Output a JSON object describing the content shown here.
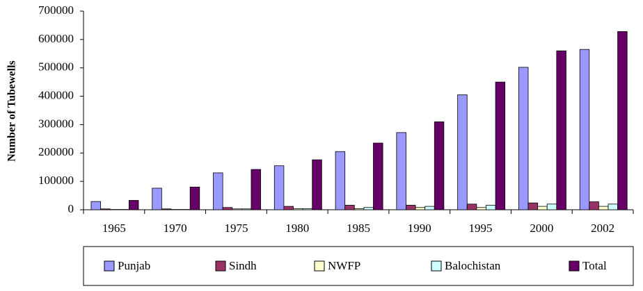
{
  "chart_data": {
    "type": "bar",
    "y_label": "Number of Tubewells",
    "categories": [
      "1965",
      "1970",
      "1975",
      "1980",
      "1985",
      "1990",
      "1995",
      "2000",
      "2002"
    ],
    "series": [
      {
        "name": "Punjab",
        "color": "#9999ff",
        "values": [
          29000,
          76000,
          130000,
          155000,
          205000,
          272000,
          405000,
          502000,
          565000
        ]
      },
      {
        "name": "Sindh",
        "color": "#993366",
        "values": [
          3000,
          3000,
          8000,
          12000,
          16000,
          16000,
          20000,
          24000,
          28000
        ]
      },
      {
        "name": "NWFP",
        "color": "#ffffcc",
        "values": [
          1000,
          1000,
          3000,
          4000,
          4000,
          8000,
          8000,
          12000,
          12000
        ]
      },
      {
        "name": "Balochistan",
        "color": "#ccffff",
        "values": [
          1000,
          1000,
          3000,
          4000,
          8000,
          12000,
          16000,
          20000,
          20000
        ]
      },
      {
        "name": "Total",
        "color": "#660066",
        "values": [
          33000,
          80000,
          142000,
          176000,
          235000,
          310000,
          450000,
          560000,
          628000
        ]
      }
    ],
    "ylim": [
      0,
      700000
    ],
    "yticks": [
      0,
      100000,
      200000,
      300000,
      400000,
      500000,
      600000,
      700000
    ],
    "grid": false,
    "legend": "bottom"
  }
}
